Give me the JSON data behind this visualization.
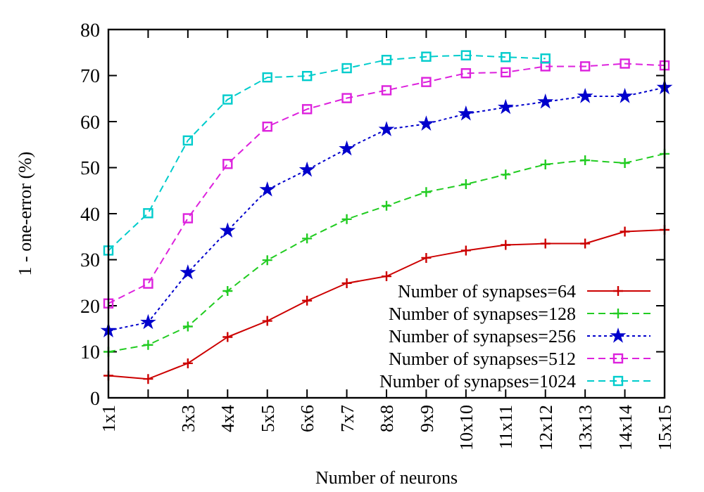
{
  "chart_data": {
    "type": "line",
    "xlabel": "Number of neurons",
    "ylabel": "1 - one-error (%)",
    "categories": [
      "1x1",
      null,
      "3x3",
      "4x4",
      "5x5",
      "6x6",
      "7x7",
      "8x8",
      "9x9",
      "10x10",
      "11x11",
      "12x12",
      "13x13",
      "14x14",
      "15x15"
    ],
    "ylim": [
      0,
      80
    ],
    "yticks": [
      0,
      10,
      20,
      30,
      40,
      50,
      60,
      70,
      80
    ],
    "grid": false,
    "legend": "bottom right",
    "series": [
      {
        "name": "Number of synapses=64",
        "color": "#cc0000",
        "marker": "cross",
        "line_style": "solid",
        "values": [
          4.8,
          4.1,
          7.5,
          13.2,
          16.7,
          21.1,
          24.9,
          26.4,
          30.4,
          32.0,
          33.2,
          33.5,
          33.5,
          36.1,
          36.5
        ]
      },
      {
        "name": "Number of synapses=128",
        "color": "#22cc22",
        "marker": "cross",
        "line_style": "dashed",
        "values": [
          10.0,
          11.5,
          15.5,
          23.2,
          29.9,
          34.6,
          38.8,
          41.7,
          44.7,
          46.4,
          48.5,
          50.7,
          51.6,
          51.0,
          53.0
        ]
      },
      {
        "name": "Number of synapses=256",
        "color": "#0000cc",
        "marker": "star",
        "line_style": "dotted",
        "values": [
          14.6,
          16.4,
          27.2,
          36.3,
          45.2,
          49.5,
          54.1,
          58.3,
          59.5,
          61.7,
          63.1,
          64.3,
          65.5,
          65.5,
          67.4
        ]
      },
      {
        "name": "Number of synapses=512",
        "color": "#dd22dd",
        "marker": "square",
        "line_style": "dashed",
        "values": [
          20.5,
          24.8,
          39.0,
          50.8,
          58.9,
          62.7,
          65.1,
          66.8,
          68.6,
          70.5,
          70.7,
          72.0,
          72.0,
          72.6,
          72.2
        ]
      },
      {
        "name": "Number of synapses=1024",
        "color": "#00cccc",
        "marker": "square",
        "line_style": "dashed",
        "values": [
          32.0,
          40.1,
          55.9,
          64.8,
          69.6,
          69.9,
          71.6,
          73.4,
          74.1,
          74.4,
          74.0,
          73.7,
          null,
          null,
          null
        ]
      }
    ]
  }
}
